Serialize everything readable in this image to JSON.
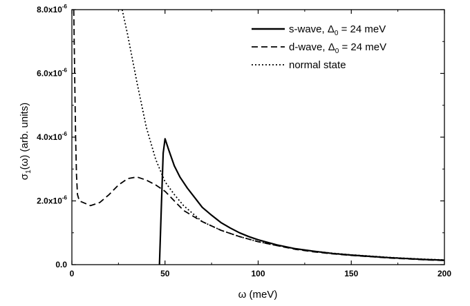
{
  "chart_data": {
    "type": "line",
    "xlabel": "ω (meV)",
    "ylabel": "σ",
    "ylabel_sub": "1",
    "ylabel_rest": "(ω) (arb. units)",
    "xlim": [
      0,
      200
    ],
    "ylim": [
      0,
      8e-06
    ],
    "x_ticks": [
      0,
      50,
      100,
      150,
      200
    ],
    "x_tick_labels": [
      "0",
      "50",
      "100",
      "150",
      "200"
    ],
    "y_ticks": [
      0,
      2e-06,
      4e-06,
      6e-06,
      8e-06
    ],
    "y_tick_labels": [
      {
        "base": "0.0",
        "exp": ""
      },
      {
        "base": "2.0x10",
        "exp": "-6"
      },
      {
        "base": "4.0x10",
        "exp": "-6"
      },
      {
        "base": "6.0x10",
        "exp": "-6"
      },
      {
        "base": "8.0x10",
        "exp": "-6"
      }
    ],
    "grid": false,
    "legend_position": "top-right",
    "series": [
      {
        "name": "s-wave, Δ0 = 24 meV",
        "legend_parts": [
          "s-wave, Δ",
          "0",
          " = 24 meV"
        ],
        "style": "solid",
        "x": [
          47,
          48,
          49,
          50,
          52,
          55,
          58,
          62,
          66,
          70,
          75,
          80,
          85,
          90,
          95,
          100,
          110,
          120,
          130,
          140,
          150,
          160,
          170,
          180,
          190,
          200
        ],
        "y": [
          0,
          1.8e-06,
          3.5e-06,
          3.95e-06,
          3.6e-06,
          3.1e-06,
          2.75e-06,
          2.4e-06,
          2.1e-06,
          1.8e-06,
          1.55e-06,
          1.32e-06,
          1.15e-06,
          1e-06,
          8.8e-07,
          7.8e-07,
          6.2e-07,
          5e-07,
          4.2e-07,
          3.5e-07,
          3e-07,
          2.6e-07,
          2.2e-07,
          1.9e-07,
          1.6e-07,
          1.4e-07
        ]
      },
      {
        "name": "d-wave, Δ0 = 24 meV",
        "legend_parts": [
          "d-wave, Δ",
          "0",
          " = 24 meV"
        ],
        "style": "dashed",
        "x": [
          1,
          1.5,
          2,
          2.5,
          3,
          4,
          6,
          10,
          15,
          20,
          25,
          30,
          35,
          40,
          45,
          50,
          55,
          60,
          70,
          80,
          90,
          100,
          110,
          120,
          130,
          140,
          150,
          160,
          170,
          180,
          190,
          200
        ],
        "y": [
          8e-06,
          6e-06,
          4e-06,
          2.8e-06,
          2.2e-06,
          2e-06,
          1.95e-06,
          1.85e-06,
          1.95e-06,
          2.2e-06,
          2.5e-06,
          2.7e-06,
          2.75e-06,
          2.65e-06,
          2.5e-06,
          2.3e-06,
          2e-06,
          1.7e-06,
          1.35e-06,
          1.08e-06,
          8.8e-07,
          7.2e-07,
          6e-07,
          4.8e-07,
          4e-07,
          3.4e-07,
          2.9e-07,
          2.5e-07,
          2.1e-07,
          1.8e-07,
          1.5e-07,
          1.3e-07
        ]
      },
      {
        "name": "normal state",
        "legend_parts": [
          "normal state",
          "",
          ""
        ],
        "style": "dotted",
        "x": [
          27,
          30,
          35,
          40,
          45,
          50,
          55,
          60,
          70,
          80,
          90,
          100,
          110,
          120,
          130,
          140,
          150,
          160,
          170,
          180,
          190,
          200
        ],
        "y": [
          8e-06,
          7.2e-06,
          5.7e-06,
          4.3e-06,
          3.3e-06,
          2.6e-06,
          2.2e-06,
          1.85e-06,
          1.35e-06,
          1.08e-06,
          8.8e-07,
          7.2e-07,
          6e-07,
          5e-07,
          4.2e-07,
          3.6e-07,
          3.1e-07,
          2.7e-07,
          2.3e-07,
          2e-07,
          1.7e-07,
          1.5e-07
        ]
      }
    ]
  }
}
